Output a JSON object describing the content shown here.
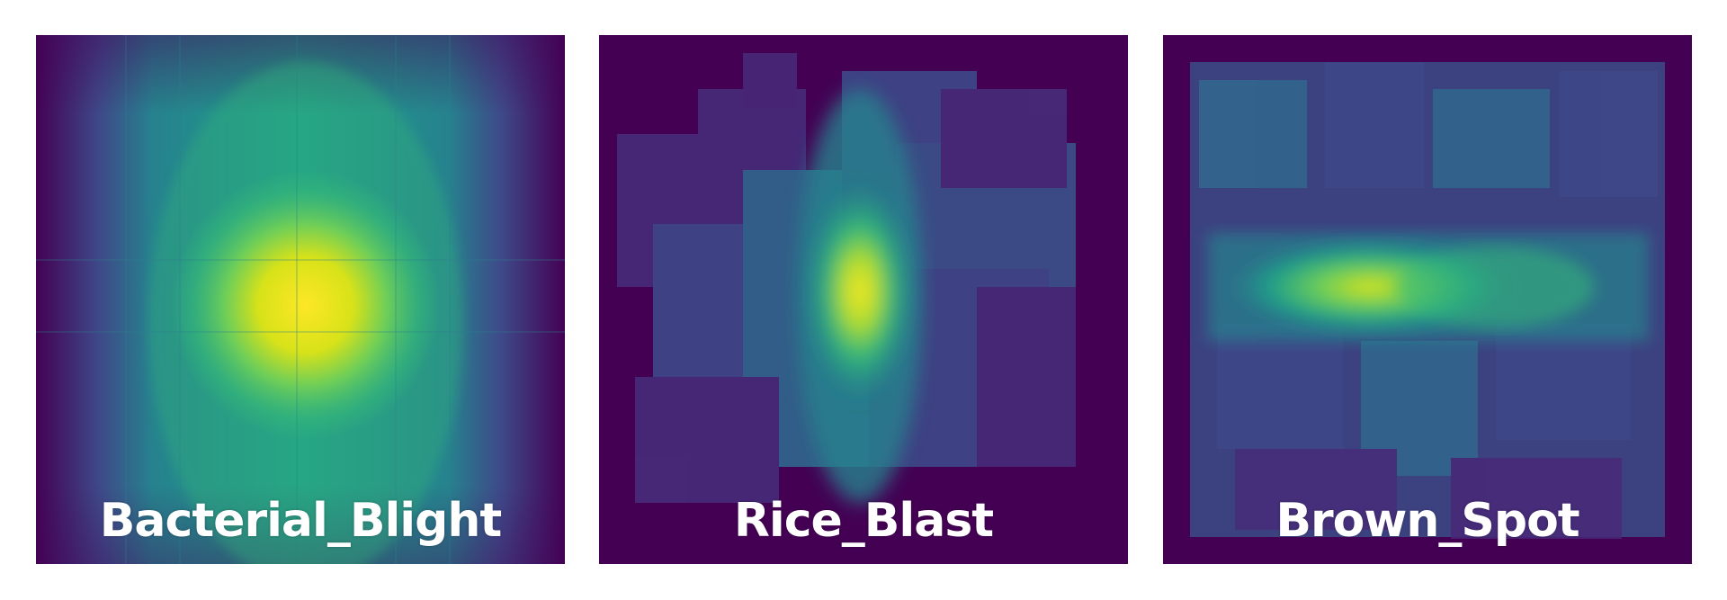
{
  "colormap": {
    "name": "viridis",
    "stops": [
      "#440154",
      "#482878",
      "#3e4989",
      "#31688e",
      "#26828e",
      "#1f9e89",
      "#35b779",
      "#6ece58",
      "#b5de2b",
      "#fde725"
    ]
  },
  "panels": [
    {
      "id": "bacterial-blight",
      "label": "Bacterial_Blight",
      "background": "#440154"
    },
    {
      "id": "rice-blast",
      "label": "Rice_Blast",
      "background": "#440154"
    },
    {
      "id": "brown-spot",
      "label": "Brown_Spot",
      "background": "#440154"
    }
  ]
}
